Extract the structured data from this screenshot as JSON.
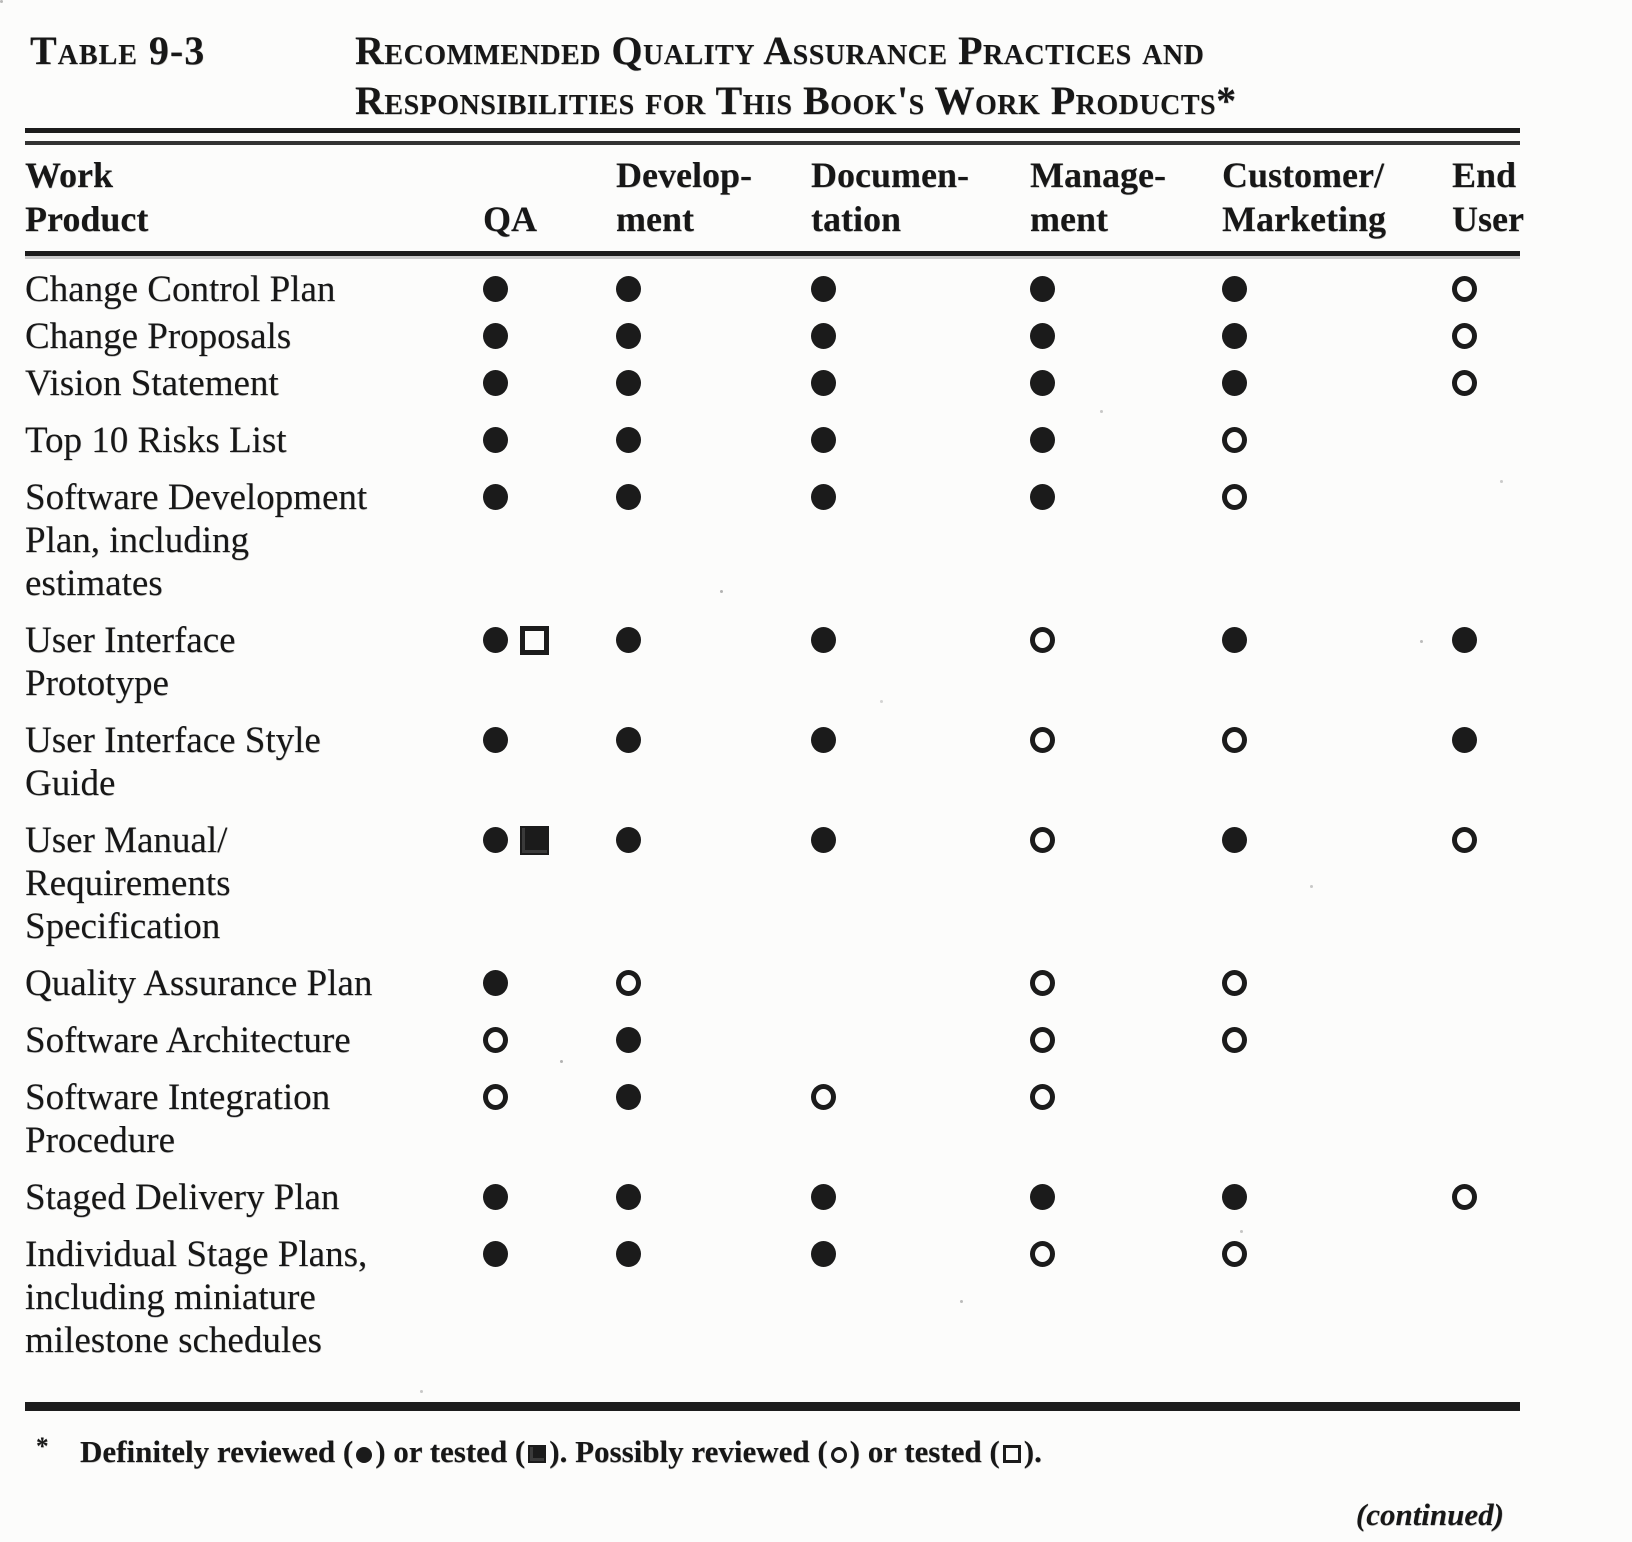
{
  "page": {
    "label": "Table 9-3",
    "title_line1": "Recommended Quality Assurance Practices and",
    "title_line2": "Responsibilities for This Book's Work Products*",
    "continued_note": "(continued)"
  },
  "table": {
    "columns": [
      "Work\nProduct",
      "QA",
      "Develop-\nment",
      "Documen-\ntation",
      "Manage-\nment",
      "Customer/\nMarketing",
      "End\nUser"
    ],
    "marker_meaning": {
      "fc": "definitely reviewed (filled circle)",
      "fsq": "definitely tested (filled square)",
      "oc": "possibly reviewed (open circle)",
      "osq": "possibly tested (open square)"
    },
    "rows": [
      {
        "product": "Change Control Plan",
        "cells": [
          [
            "fc"
          ],
          [
            "fc"
          ],
          [
            "fc"
          ],
          [
            "fc"
          ],
          [
            "fc"
          ],
          [
            "oc"
          ]
        ]
      },
      {
        "product": "Change Proposals",
        "cells": [
          [
            "fc"
          ],
          [
            "fc"
          ],
          [
            "fc"
          ],
          [
            "fc"
          ],
          [
            "fc"
          ],
          [
            "oc"
          ]
        ]
      },
      {
        "product": "Vision Statement",
        "cells": [
          [
            "fc"
          ],
          [
            "fc"
          ],
          [
            "fc"
          ],
          [
            "fc"
          ],
          [
            "fc"
          ],
          [
            "oc"
          ]
        ]
      },
      {
        "product": "Top 10 Risks List",
        "cells": [
          [
            "fc"
          ],
          [
            "fc"
          ],
          [
            "fc"
          ],
          [
            "fc"
          ],
          [
            "oc"
          ],
          []
        ]
      },
      {
        "product": "Software Development\nPlan, including\nestimates",
        "cells": [
          [
            "fc"
          ],
          [
            "fc"
          ],
          [
            "fc"
          ],
          [
            "fc"
          ],
          [
            "oc"
          ],
          []
        ]
      },
      {
        "product": "User Interface\nPrototype",
        "cells": [
          [
            "fc",
            "osq"
          ],
          [
            "fc"
          ],
          [
            "fc"
          ],
          [
            "oc"
          ],
          [
            "fc"
          ],
          [
            "fc"
          ]
        ]
      },
      {
        "product": "User Interface Style\nGuide",
        "cells": [
          [
            "fc"
          ],
          [
            "fc"
          ],
          [
            "fc"
          ],
          [
            "oc"
          ],
          [
            "oc"
          ],
          [
            "fc"
          ]
        ]
      },
      {
        "product": "User Manual/\nRequirements\nSpecification",
        "cells": [
          [
            "fc",
            "fsq"
          ],
          [
            "fc"
          ],
          [
            "fc"
          ],
          [
            "oc"
          ],
          [
            "fc"
          ],
          [
            "oc"
          ]
        ]
      },
      {
        "product": "Quality Assurance Plan",
        "cells": [
          [
            "fc"
          ],
          [
            "oc"
          ],
          [],
          [
            "oc"
          ],
          [
            "oc"
          ],
          []
        ]
      },
      {
        "product": "Software Architecture",
        "cells": [
          [
            "oc"
          ],
          [
            "fc"
          ],
          [],
          [
            "oc"
          ],
          [
            "oc"
          ],
          []
        ]
      },
      {
        "product": "Software Integration\nProcedure",
        "cells": [
          [
            "oc"
          ],
          [
            "fc"
          ],
          [
            "oc"
          ],
          [
            "oc"
          ],
          [],
          []
        ]
      },
      {
        "product": "Staged Delivery Plan",
        "cells": [
          [
            "fc"
          ],
          [
            "fc"
          ],
          [
            "fc"
          ],
          [
            "fc"
          ],
          [
            "fc"
          ],
          [
            "oc"
          ]
        ]
      },
      {
        "product": "Individual Stage Plans,\nincluding miniature\nmilestone schedules",
        "cells": [
          [
            "fc"
          ],
          [
            "fc"
          ],
          [
            "fc"
          ],
          [
            "oc"
          ],
          [
            "oc"
          ],
          []
        ]
      }
    ]
  },
  "footnote": {
    "asterisk": "*",
    "parts": [
      {
        "t": "Definitely reviewed ("
      },
      {
        "m": "fc"
      },
      {
        "t": ") or tested ("
      },
      {
        "m": "fsq"
      },
      {
        "t": "). Possibly reviewed ("
      },
      {
        "m": "oc"
      },
      {
        "t": ") or tested ("
      },
      {
        "m": "osq"
      },
      {
        "t": ")."
      }
    ]
  }
}
